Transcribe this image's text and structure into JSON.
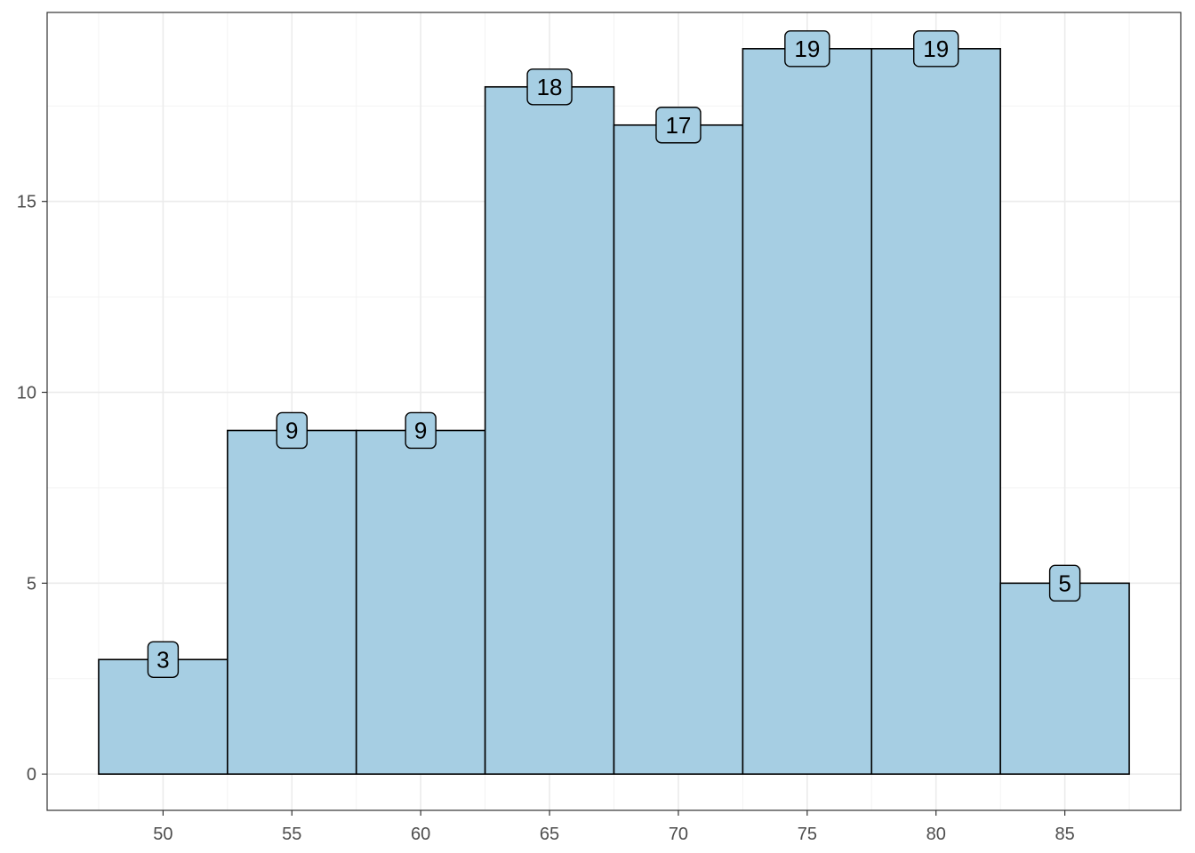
{
  "chart_data": {
    "type": "bar",
    "subtype": "histogram",
    "bin_width": 5,
    "bin_centers": [
      50,
      55,
      60,
      65,
      70,
      75,
      80,
      85
    ],
    "values": [
      3,
      9,
      9,
      18,
      17,
      19,
      19,
      5
    ],
    "labels": [
      "3",
      "9",
      "9",
      "18",
      "17",
      "19",
      "19",
      "5"
    ],
    "xlim": [
      45.5,
      89.5
    ],
    "ylim": [
      -0.95,
      19.95
    ],
    "x_ticks": [
      50,
      55,
      60,
      65,
      70,
      75,
      80,
      85
    ],
    "x_tick_labels": [
      "50",
      "55",
      "60",
      "65",
      "70",
      "75",
      "80",
      "85"
    ],
    "y_ticks": [
      0,
      5,
      10,
      15
    ],
    "y_tick_labels": [
      "0",
      "5",
      "10",
      "15"
    ],
    "title": "",
    "xlabel": "",
    "ylabel": "",
    "grid": true,
    "legend": false,
    "colors": {
      "bar_fill": "#a6cee3",
      "bar_stroke": "#000000",
      "grid_major": "#ebebeb",
      "grid_minor": "#f3f3f3",
      "panel_border": "#333333",
      "label_fill": "#a6cee3"
    }
  }
}
